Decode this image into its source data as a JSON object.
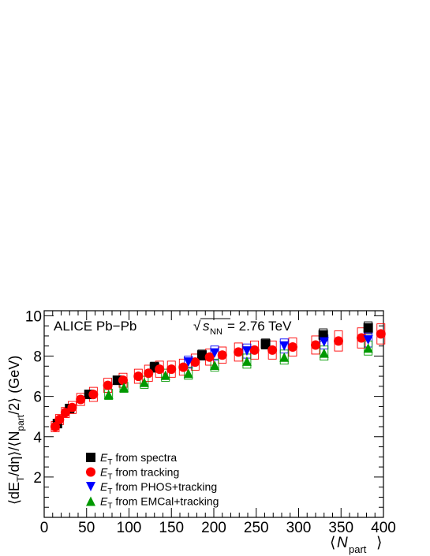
{
  "chart_data": {
    "type": "scatter",
    "title": "ALICE Pb−Pb",
    "energy_label": {
      "prefix": "√",
      "s": "s",
      "sub": "NN",
      "value": " = 2.76 TeV"
    },
    "xlabel": {
      "open": "⟨",
      "var": "N",
      "sub": "part",
      "close": "⟩"
    },
    "ylabel": {
      "p1": "⟨dE",
      "p1sub": "T",
      "p2": "/dη⟩/⟨N",
      "p2sub": "part",
      "p3": "/2⟩ (GeV)"
    },
    "xlim": [
      0,
      400
    ],
    "ylim": [
      0,
      10.25
    ],
    "xticks": [
      0,
      50,
      100,
      150,
      200,
      250,
      300,
      350,
      400
    ],
    "yticks": [
      2,
      4,
      6,
      8,
      10
    ],
    "series": [
      {
        "name": "from spectra",
        "label_var": "E",
        "label_sub": "T",
        "marker": "square",
        "color": "#000000",
        "syscolor": "#000000",
        "x": [
          15.6,
          30.0,
          52.8,
          86.3,
          130,
          186,
          261,
          329,
          382
        ],
        "y": [
          4.65,
          5.4,
          6.1,
          6.8,
          7.45,
          8.05,
          8.6,
          9.05,
          9.4
        ],
        "sys": [
          0.15,
          0.15,
          0.2,
          0.2,
          0.25,
          0.25,
          0.25,
          0.3,
          0.3
        ]
      },
      {
        "name": "from tracking",
        "label_var": "E",
        "label_sub": "T",
        "marker": "circle",
        "color": "#ff0000",
        "syscolor": "#ff0000",
        "x": [
          13,
          18,
          25,
          33,
          43,
          58,
          75,
          93,
          111,
          123,
          136,
          150,
          164,
          178,
          195,
          210,
          229,
          248,
          269,
          293,
          320,
          347,
          374,
          397
        ],
        "y": [
          4.5,
          4.85,
          5.2,
          5.45,
          5.85,
          6.1,
          6.55,
          6.8,
          7.0,
          7.15,
          7.35,
          7.35,
          7.45,
          7.7,
          7.95,
          8.05,
          8.2,
          8.3,
          8.3,
          8.45,
          8.55,
          8.75,
          8.9,
          9.1
        ],
        "sys": [
          0.25,
          0.25,
          0.25,
          0.3,
          0.3,
          0.35,
          0.35,
          0.35,
          0.35,
          0.4,
          0.4,
          0.4,
          0.4,
          0.4,
          0.4,
          0.4,
          0.45,
          0.45,
          0.45,
          0.45,
          0.45,
          0.5,
          0.5,
          0.5
        ]
      },
      {
        "name": "from PHOS+tracking",
        "label_var": "E",
        "label_sub": "T",
        "marker": "triangle-down",
        "color": "#0000ff",
        "syscolor": "#0000ff",
        "x": [
          170,
          201,
          239,
          283,
          330,
          382
        ],
        "y": [
          7.7,
          8.15,
          8.25,
          8.5,
          8.7,
          8.8
        ],
        "sys": [
          0.3,
          0.35,
          0.35,
          0.35,
          0.35,
          0.35
        ]
      },
      {
        "name": "from EMCal+tracking",
        "label_var": "E",
        "label_sub": "T",
        "marker": "triangle-up",
        "color": "#009900",
        "syscolor": "#009900",
        "x": [
          76,
          94,
          118,
          143,
          170,
          201,
          239,
          283,
          330,
          382
        ],
        "y": [
          6.1,
          6.45,
          6.7,
          7.05,
          7.15,
          7.55,
          7.75,
          7.95,
          8.15,
          8.4
        ],
        "sys": [
          0.25,
          0.25,
          0.3,
          0.3,
          0.3,
          0.3,
          0.35,
          0.35,
          0.35,
          0.35
        ]
      }
    ]
  }
}
